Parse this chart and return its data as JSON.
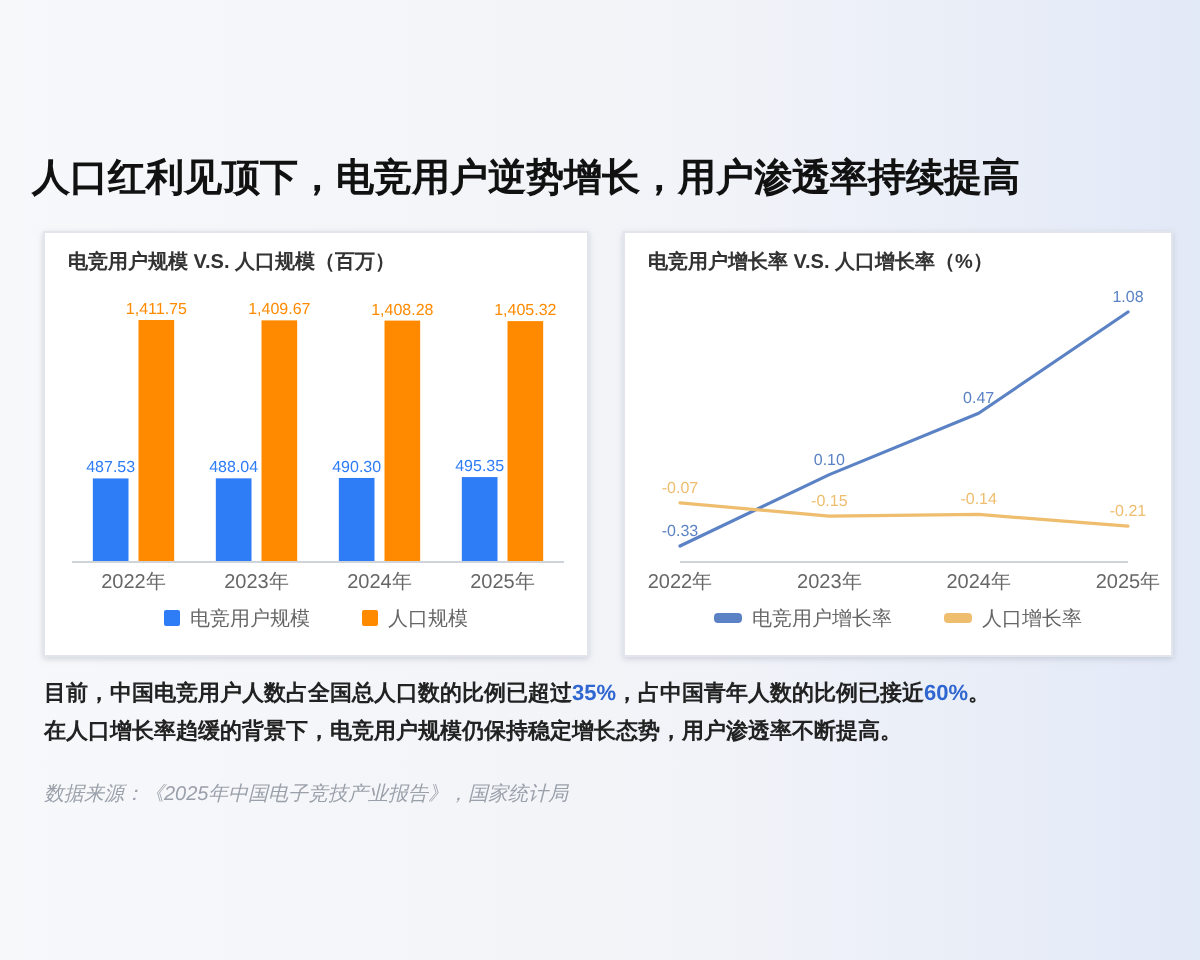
{
  "chart_data": [
    {
      "type": "other",
      "title": "人口红利见顶下，电竞用户逆势增长，用户渗透率持续提高"
    },
    {
      "type": "bar",
      "title": "电竞用户规模 V.S. 人口规模（百万）",
      "categories": [
        "2022年",
        "2023年",
        "2024年",
        "2025年"
      ],
      "series": [
        {
          "name": "电竞用户规模",
          "color": "#2e7cf6",
          "values": [
            487.53,
            488.04,
            490.3,
            495.35
          ],
          "value_labels": [
            "487.53",
            "488.04",
            "490.30",
            "495.35"
          ]
        },
        {
          "name": "人口规模",
          "color": "#ff8a00",
          "values": [
            1411.75,
            1409.67,
            1408.28,
            1405.32
          ],
          "value_labels": [
            "1,411.75",
            "1,409.67",
            "1,408.28",
            "1,405.32"
          ]
        }
      ],
      "tick_labels": "x",
      "legend": "bottom"
    },
    {
      "type": "line",
      "title": "电竞用户增长率 V.S. 人口增长率（%）",
      "categories": [
        "2022年",
        "2023年",
        "2024年",
        "2025年"
      ],
      "series": [
        {
          "name": "电竞用户增长率",
          "color": "#5a82c4",
          "values": [
            -0.33,
            0.1,
            0.47,
            1.08
          ],
          "value_labels": [
            "-0.33",
            "0.10",
            "0.47",
            "1.08"
          ]
        },
        {
          "name": "人口增长率",
          "color": "#efbd6e",
          "values": [
            -0.07,
            -0.15,
            -0.14,
            -0.21
          ],
          "value_labels": [
            "-0.07",
            "-0.15",
            "-0.14",
            "-0.21"
          ]
        }
      ],
      "tick_labels": "x",
      "legend": "bottom"
    },
    {
      "type": "other",
      "annotations": [
        "目前，中国电竞用户人数占全国总人口数的比例已超过35%，占中国青年人数的比例已接近60%。",
        "在人口增长率趋缓的背景下，电竞用户规模仍保持稳定增长态势，用户渗透率不断提高。",
        "数据来源：《2025年中国电子竞技产业报告》，国家统计局"
      ]
    }
  ]
}
